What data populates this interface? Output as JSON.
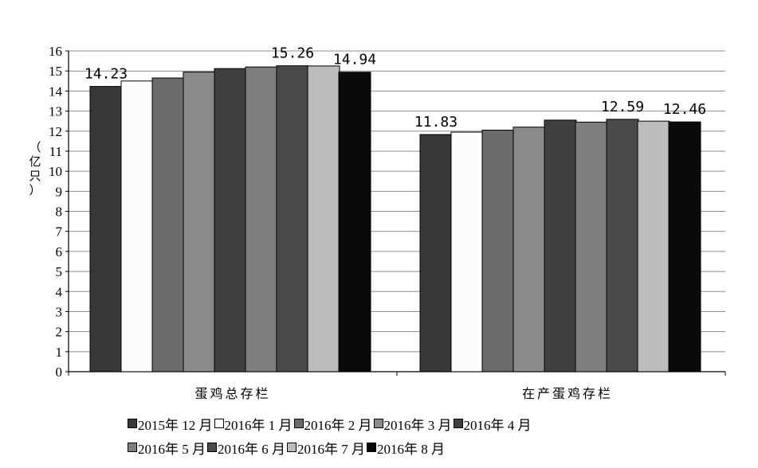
{
  "chart_data": {
    "type": "bar",
    "ylabel": "（亿只）",
    "ylim": [
      0,
      16
    ],
    "yticks": [
      0,
      1,
      2,
      3,
      4,
      5,
      6,
      7,
      8,
      9,
      10,
      11,
      12,
      13,
      14,
      15,
      16
    ],
    "grid": true,
    "legend_position": "bottom",
    "categories": [
      "蛋鸡总存栏",
      "在产蛋鸡存栏"
    ],
    "series": [
      {
        "name": "2015年 12 月",
        "color": "#383838",
        "values": [
          14.23,
          11.83
        ]
      },
      {
        "name": "2016年 1 月",
        "color": "#fcfcfc",
        "values": [
          14.5,
          11.95
        ]
      },
      {
        "name": "2016年 2 月",
        "color": "#6b6b6b",
        "values": [
          14.65,
          12.05
        ]
      },
      {
        "name": "2016年 3 月",
        "color": "#8a8a8a",
        "values": [
          14.95,
          12.2
        ]
      },
      {
        "name": "2016年 4 月",
        "color": "#404040",
        "values": [
          15.12,
          12.55
        ]
      },
      {
        "name": "2016年 5 月",
        "color": "#7e7e7e",
        "values": [
          15.2,
          12.45
        ]
      },
      {
        "name": "2016年 6 月",
        "color": "#4a4a4a",
        "values": [
          15.26,
          12.59
        ]
      },
      {
        "name": "2016年 7 月",
        "color": "#bcbcbc",
        "values": [
          15.25,
          12.5
        ]
      },
      {
        "name": "2016年 8 月",
        "color": "#0a0a0a",
        "values": [
          14.94,
          12.46
        ]
      }
    ],
    "data_labels": [
      {
        "category": 0,
        "series": 0,
        "text": "14.23"
      },
      {
        "category": 0,
        "series": 6,
        "text": "15.26"
      },
      {
        "category": 0,
        "series": 8,
        "text": "14.94"
      },
      {
        "category": 1,
        "series": 0,
        "text": "11.83"
      },
      {
        "category": 1,
        "series": 6,
        "text": "12.59"
      },
      {
        "category": 1,
        "series": 8,
        "text": "12.46"
      }
    ]
  }
}
